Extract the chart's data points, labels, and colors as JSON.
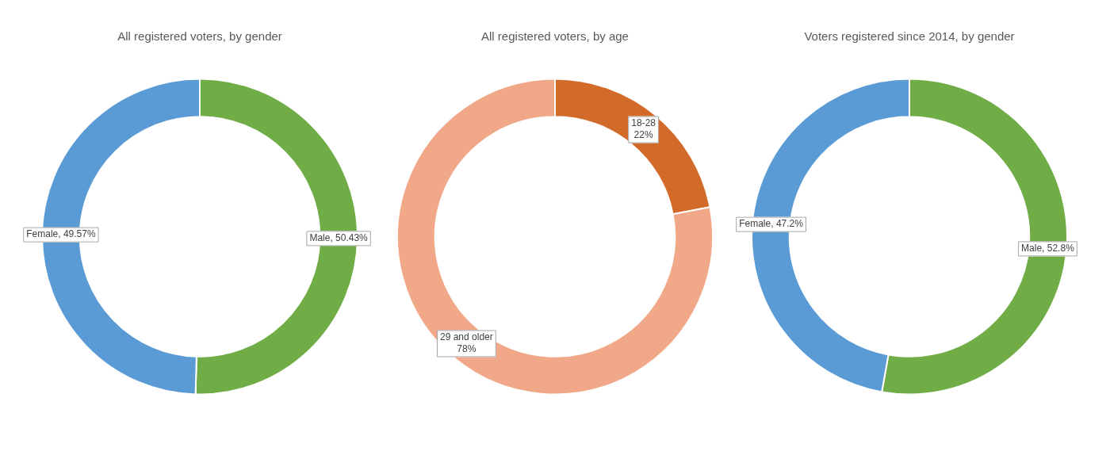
{
  "chart_data": [
    {
      "type": "donut",
      "title": "All registered voters, by gender",
      "categories": [
        "Male",
        "Female"
      ],
      "values": [
        50.43,
        49.57
      ],
      "colors": [
        "#70ad47",
        "#5b9bd5"
      ],
      "value_labels": [
        "50.43%",
        "49.57%"
      ]
    },
    {
      "type": "donut",
      "title": "All registered voters, by age",
      "categories": [
        "18-28",
        "29 and older"
      ],
      "values": [
        22,
        78
      ],
      "colors": [
        "#d26b2a",
        "#f0a889"
      ],
      "value_labels": [
        "22%",
        "78%"
      ]
    },
    {
      "type": "donut",
      "title": "Voters registered since 2014, by gender",
      "categories": [
        "Male",
        "Female"
      ],
      "values": [
        52.8,
        47.2
      ],
      "colors": [
        "#70ad47",
        "#5b9bd5"
      ],
      "value_labels": [
        "52.8%",
        "47.2%"
      ]
    }
  ]
}
